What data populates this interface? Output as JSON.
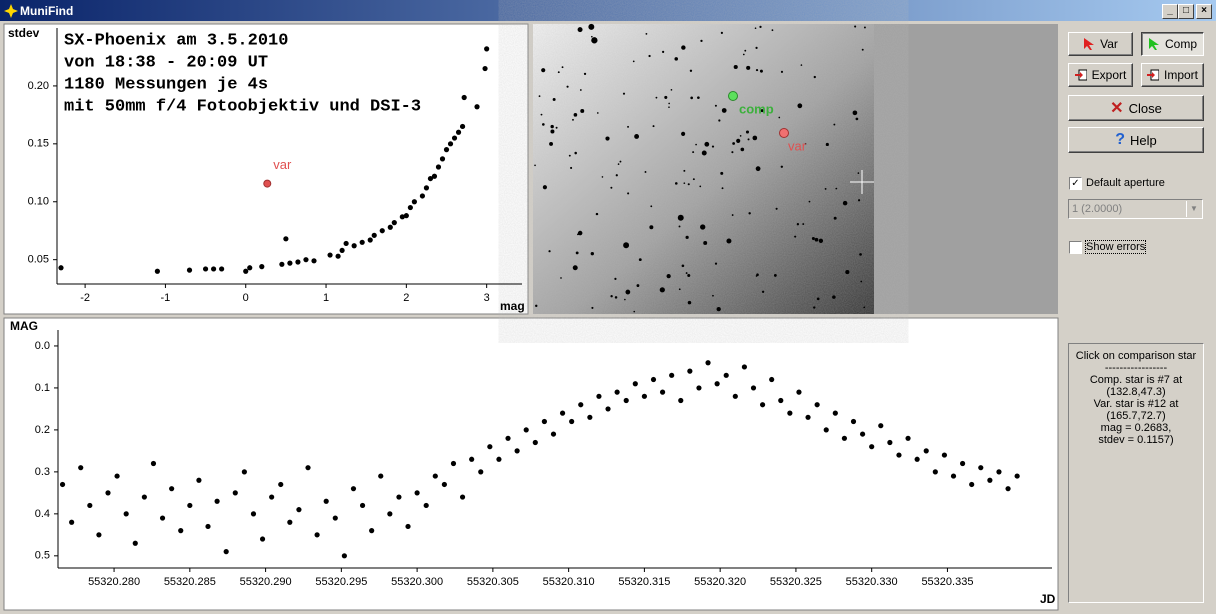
{
  "window": {
    "title": "MuniFind"
  },
  "image": {
    "comp_label": "comp",
    "var_label": "var"
  },
  "buttons": {
    "var": "Var",
    "comp": "Comp",
    "export": "Export",
    "import": "Import",
    "close": "Close",
    "help": "Help"
  },
  "options": {
    "default_aperture": "Default aperture",
    "aperture_value": "1 (2.0000)",
    "show_errors": "Show errors"
  },
  "info": [
    "Click on comparison star",
    "-----------------",
    "Comp. star is #7 at",
    "(132.8,47.3)",
    "Var. star is #12 at",
    "(165.7,72.7)",
    "mag = 0.2683,",
    "stdev = 0.1157)"
  ],
  "chart_data": [
    {
      "type": "scatter",
      "ylabel": "stdev",
      "xlabel": "mag",
      "annotations": [
        "SX-Phoenix am 3.5.2010",
        "von 18:38 - 20:09 UT",
        "1180 Messungen je 4s",
        "mit 50mm f/4 Fotoobjektiv und DSI-3"
      ],
      "xlim": [
        -2.35,
        3.44
      ],
      "ylim": [
        0.029,
        0.25
      ],
      "xticks": [
        -2,
        -1,
        0,
        1,
        2,
        3
      ],
      "yticks": [
        {
          "value": 0.05,
          "label": "0.05"
        },
        {
          "value": 0.1,
          "label": "0.10"
        },
        {
          "value": 0.15,
          "label": "0.15"
        },
        {
          "value": 0.2,
          "label": "0.20"
        }
      ],
      "color": "#000000",
      "x": [
        -2.3,
        -1.1,
        -0.7,
        -0.5,
        -0.4,
        -0.3,
        0.0,
        0.05,
        0.2,
        0.45,
        0.5,
        0.55,
        0.65,
        0.75,
        0.85,
        1.05,
        1.15,
        1.2,
        1.25,
        1.35,
        1.45,
        1.55,
        1.6,
        1.7,
        1.8,
        1.85,
        1.95,
        2.0,
        2.05,
        2.1,
        2.2,
        2.25,
        2.3,
        2.35,
        2.4,
        2.45,
        2.5,
        2.55,
        2.6,
        2.65,
        2.7,
        2.72,
        2.88,
        2.98,
        3.0
      ],
      "values": [
        0.043,
        0.04,
        0.041,
        0.042,
        0.042,
        0.042,
        0.04,
        0.043,
        0.044,
        0.046,
        0.068,
        0.047,
        0.048,
        0.05,
        0.049,
        0.054,
        0.053,
        0.058,
        0.064,
        0.062,
        0.065,
        0.067,
        0.071,
        0.075,
        0.078,
        0.082,
        0.087,
        0.088,
        0.095,
        0.1,
        0.105,
        0.112,
        0.12,
        0.122,
        0.13,
        0.137,
        0.145,
        0.15,
        0.155,
        0.16,
        0.165,
        0.19,
        0.182,
        0.215,
        0.232
      ],
      "highlight": {
        "label": "var",
        "x": 0.2683,
        "y": 0.1157,
        "color": "#e05050"
      }
    },
    {
      "type": "scatter",
      "ylabel": "MAG",
      "xlabel": "JD",
      "xlim": [
        55320.2763,
        55320.3419
      ],
      "ylim": [
        0.529,
        -0.038
      ],
      "xticks": [
        {
          "value": 55320.28,
          "label": "55320.280"
        },
        {
          "value": 55320.285,
          "label": "55320.285"
        },
        {
          "value": 55320.29,
          "label": "55320.290"
        },
        {
          "value": 55320.295,
          "label": "55320.295"
        },
        {
          "value": 55320.3,
          "label": "55320.300"
        },
        {
          "value": 55320.305,
          "label": "55320.305"
        },
        {
          "value": 55320.31,
          "label": "55320.310"
        },
        {
          "value": 55320.315,
          "label": "55320.315"
        },
        {
          "value": 55320.32,
          "label": "55320.320"
        },
        {
          "value": 55320.325,
          "label": "55320.325"
        },
        {
          "value": 55320.33,
          "label": "55320.330"
        },
        {
          "value": 55320.335,
          "label": "55320.335"
        }
      ],
      "yticks": [
        {
          "value": 0,
          "label": "0.0"
        },
        0.1,
        0.2,
        0.3,
        0.4,
        0.5
      ],
      "color": "#000000",
      "x": [
        55320.2766,
        55320.2772,
        55320.2778,
        55320.2784,
        55320.279,
        55320.2796,
        55320.2802,
        55320.2808,
        55320.2814,
        55320.282,
        55320.2826,
        55320.2832,
        55320.2838,
        55320.2844,
        55320.285,
        55320.2856,
        55320.2862,
        55320.2868,
        55320.2874,
        55320.288,
        55320.2886,
        55320.2892,
        55320.2898,
        55320.2904,
        55320.291,
        55320.2916,
        55320.2922,
        55320.2928,
        55320.2934,
        55320.294,
        55320.2946,
        55320.2952,
        55320.2958,
        55320.2964,
        55320.297,
        55320.2976,
        55320.2982,
        55320.2988,
        55320.2994,
        55320.3,
        55320.3006,
        55320.3012,
        55320.3018,
        55320.3024,
        55320.303,
        55320.3036,
        55320.3042,
        55320.3048,
        55320.3054,
        55320.306,
        55320.3066,
        55320.3072,
        55320.3078,
        55320.3084,
        55320.309,
        55320.3096,
        55320.3102,
        55320.3108,
        55320.3114,
        55320.312,
        55320.3126,
        55320.3132,
        55320.3138,
        55320.3144,
        55320.315,
        55320.3156,
        55320.3162,
        55320.3168,
        55320.3174,
        55320.318,
        55320.3186,
        55320.3192,
        55320.3198,
        55320.3204,
        55320.321,
        55320.3216,
        55320.3222,
        55320.3228,
        55320.3234,
        55320.324,
        55320.3246,
        55320.3252,
        55320.3258,
        55320.3264,
        55320.327,
        55320.3276,
        55320.3282,
        55320.3288,
        55320.3294,
        55320.33,
        55320.3306,
        55320.3312,
        55320.3318,
        55320.3324,
        55320.333,
        55320.3336,
        55320.3342,
        55320.3348,
        55320.3354,
        55320.336,
        55320.3366,
        55320.3372,
        55320.3378,
        55320.3384,
        55320.339,
        55320.3396
      ],
      "values": [
        0.33,
        0.42,
        0.29,
        0.38,
        0.45,
        0.35,
        0.31,
        0.4,
        0.47,
        0.36,
        0.28,
        0.41,
        0.34,
        0.44,
        0.38,
        0.32,
        0.43,
        0.37,
        0.49,
        0.35,
        0.3,
        0.4,
        0.46,
        0.36,
        0.33,
        0.42,
        0.39,
        0.29,
        0.45,
        0.37,
        0.41,
        0.5,
        0.34,
        0.38,
        0.44,
        0.31,
        0.4,
        0.36,
        0.43,
        0.35,
        0.38,
        0.31,
        0.33,
        0.28,
        0.36,
        0.27,
        0.3,
        0.24,
        0.27,
        0.22,
        0.25,
        0.2,
        0.23,
        0.18,
        0.21,
        0.16,
        0.18,
        0.14,
        0.17,
        0.12,
        0.15,
        0.11,
        0.13,
        0.09,
        0.12,
        0.08,
        0.11,
        0.07,
        0.13,
        0.06,
        0.1,
        0.04,
        0.09,
        0.07,
        0.12,
        0.05,
        0.1,
        0.14,
        0.08,
        0.13,
        0.16,
        0.11,
        0.17,
        0.14,
        0.2,
        0.16,
        0.22,
        0.18,
        0.21,
        0.24,
        0.19,
        0.23,
        0.26,
        0.22,
        0.27,
        0.25,
        0.3,
        0.26,
        0.31,
        0.28,
        0.33,
        0.29,
        0.32,
        0.3,
        0.34,
        0.31
      ]
    }
  ]
}
